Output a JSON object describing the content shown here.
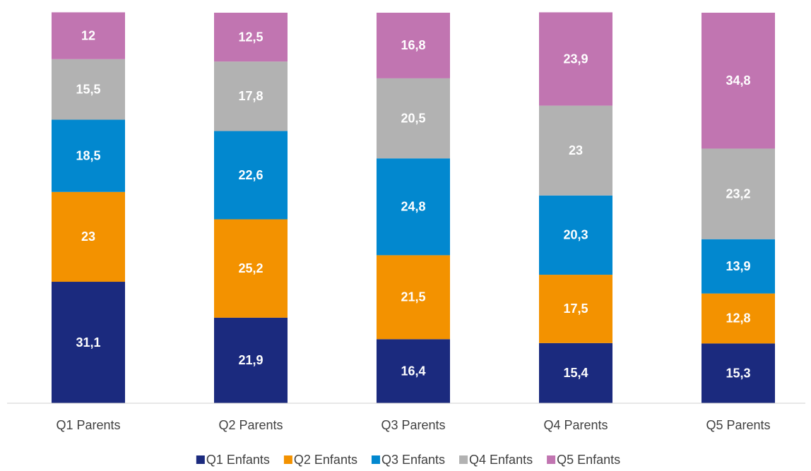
{
  "chart_data": {
    "type": "stacked_bar",
    "categories": [
      "Q1 Parents",
      "Q2 Parents",
      "Q3 Parents",
      "Q4 Parents",
      "Q5 Parents"
    ],
    "ylim": [
      0,
      100
    ],
    "series": [
      {
        "name": "Q1 Enfants",
        "color": "#1b2a7e",
        "values": [
          31.1,
          21.9,
          16.4,
          15.4,
          15.3
        ],
        "value_labels": [
          "31,1",
          "21,9",
          "16,4",
          "15,4",
          "15,3"
        ]
      },
      {
        "name": "Q2 Enfants",
        "color": "#f39200",
        "values": [
          23,
          25.2,
          21.5,
          17.5,
          12.8
        ],
        "value_labels": [
          "23",
          "25,2",
          "21,5",
          "17,5",
          "12,8"
        ]
      },
      {
        "name": "Q3 Enfants",
        "color": "#0288cf",
        "values": [
          18.5,
          22.6,
          24.8,
          20.3,
          13.9
        ],
        "value_labels": [
          "18,5",
          "22,6",
          "24,8",
          "20,3",
          "13,9"
        ]
      },
      {
        "name": "Q4 Enfants",
        "color": "#b2b2b2",
        "values": [
          15.5,
          17.8,
          20.5,
          23,
          23.2
        ],
        "value_labels": [
          "15,5",
          "17,8",
          "20,5",
          "23",
          "23,2"
        ]
      },
      {
        "name": "Q5 Enfants",
        "color": "#c175b1",
        "values": [
          12,
          12.5,
          16.8,
          23.9,
          34.8
        ],
        "value_labels": [
          "12",
          "12,5",
          "16,8",
          "23,9",
          "34,8"
        ]
      }
    ]
  }
}
